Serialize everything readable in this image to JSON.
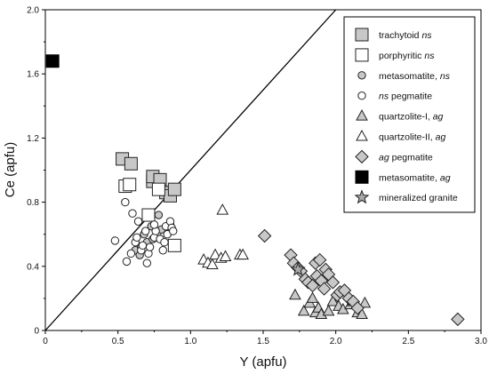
{
  "chart_data": {
    "type": "scatter",
    "xlabel": "Y (apfu)",
    "ylabel": "Ce (apfu)",
    "xlim": [
      0,
      3.0
    ],
    "ylim": [
      0,
      2.0
    ],
    "x_ticks": [
      "0",
      "0.5",
      "1.0",
      "1.5",
      "2.0",
      "2.5",
      "3.0"
    ],
    "y_ticks": [
      "0",
      "0.4",
      "0.8",
      "1.2",
      "1.6",
      "2.0"
    ],
    "legend_placement": "top-right",
    "reference_line": {
      "from": [
        0,
        0
      ],
      "to": [
        2.0,
        2.0
      ]
    },
    "series": [
      {
        "name": "trachytoid ns",
        "name_parts": {
          "text": "trachytoid",
          "italic": "ns"
        },
        "marker": "square-gray",
        "points": [
          [
            0.53,
            1.07
          ],
          [
            0.59,
            1.04
          ],
          [
            0.74,
            0.93
          ],
          [
            0.74,
            0.96
          ],
          [
            0.79,
            0.94
          ],
          [
            0.83,
            0.86
          ],
          [
            0.86,
            0.84
          ],
          [
            0.89,
            0.88
          ]
        ]
      },
      {
        "name": "porphyritic ns",
        "name_parts": {
          "text": "porphyritic",
          "italic": "ns"
        },
        "marker": "square-open",
        "points": [
          [
            0.55,
            0.9
          ],
          [
            0.58,
            0.91
          ],
          [
            0.71,
            0.72
          ],
          [
            0.78,
            0.88
          ],
          [
            0.89,
            0.53
          ]
        ]
      },
      {
        "name": "metasomatite, ns",
        "name_parts": {
          "text": "metasomatite,",
          "italic": "ns"
        },
        "marker": "circle-gray",
        "points": [
          [
            0.62,
            0.5
          ],
          [
            0.66,
            0.52
          ],
          [
            0.7,
            0.55
          ],
          [
            0.74,
            0.57
          ],
          [
            0.77,
            0.6
          ],
          [
            0.8,
            0.63
          ],
          [
            0.84,
            0.6
          ],
          [
            0.86,
            0.66
          ],
          [
            0.73,
            0.65
          ],
          [
            0.68,
            0.6
          ],
          [
            0.78,
            0.72
          ],
          [
            0.65,
            0.47
          ]
        ]
      },
      {
        "name": "ns pegmatite",
        "name_parts": {
          "italic": "ns",
          "text": "pegmatite"
        },
        "marker": "circle-open",
        "points": [
          [
            0.48,
            0.56
          ],
          [
            0.55,
            0.8
          ],
          [
            0.56,
            0.43
          ],
          [
            0.59,
            0.48
          ],
          [
            0.6,
            0.73
          ],
          [
            0.62,
            0.55
          ],
          [
            0.63,
            0.58
          ],
          [
            0.66,
            0.5
          ],
          [
            0.67,
            0.53
          ],
          [
            0.69,
            0.62
          ],
          [
            0.7,
            0.42
          ],
          [
            0.71,
            0.48
          ],
          [
            0.72,
            0.52
          ],
          [
            0.75,
            0.58
          ],
          [
            0.76,
            0.62
          ],
          [
            0.79,
            0.57
          ],
          [
            0.81,
            0.5
          ],
          [
            0.82,
            0.55
          ],
          [
            0.83,
            0.65
          ],
          [
            0.84,
            0.6
          ],
          [
            0.86,
            0.68
          ],
          [
            0.87,
            0.64
          ],
          [
            0.88,
            0.62
          ],
          [
            0.75,
            0.66
          ],
          [
            0.64,
            0.68
          ]
        ]
      },
      {
        "name": "quartzolite-I, ag",
        "name_parts": {
          "text": "quartzolite-I,",
          "italic": "ag"
        },
        "marker": "triangle-gray",
        "points": [
          [
            1.72,
            0.22
          ],
          [
            1.78,
            0.12
          ],
          [
            1.82,
            0.17
          ],
          [
            1.86,
            0.11
          ],
          [
            1.88,
            0.14
          ],
          [
            1.9,
            0.1
          ],
          [
            1.95,
            0.12
          ],
          [
            1.98,
            0.18
          ],
          [
            2.02,
            0.15
          ],
          [
            2.05,
            0.13
          ],
          [
            2.1,
            0.16
          ],
          [
            2.12,
            0.18
          ],
          [
            2.15,
            0.11
          ],
          [
            2.18,
            0.1
          ],
          [
            2.2,
            0.17
          ],
          [
            1.84,
            0.2
          ]
        ]
      },
      {
        "name": "quartzolite-II, ag",
        "name_parts": {
          "text": "quartzolite-II,",
          "italic": "ag"
        },
        "marker": "triangle-open",
        "points": [
          [
            1.09,
            0.44
          ],
          [
            1.12,
            0.42
          ],
          [
            1.15,
            0.41
          ],
          [
            1.17,
            0.47
          ],
          [
            1.21,
            0.45
          ],
          [
            1.22,
            0.75
          ],
          [
            1.24,
            0.46
          ],
          [
            1.34,
            0.47
          ],
          [
            1.36,
            0.47
          ]
        ]
      },
      {
        "name": "ag pegmatite",
        "name_parts": {
          "italic": "ag",
          "text": "pegmatite"
        },
        "marker": "diamond-gray",
        "points": [
          [
            1.51,
            0.59
          ],
          [
            1.69,
            0.47
          ],
          [
            1.71,
            0.42
          ],
          [
            1.74,
            0.39
          ],
          [
            1.76,
            0.37
          ],
          [
            1.79,
            0.32
          ],
          [
            1.81,
            0.3
          ],
          [
            1.84,
            0.28
          ],
          [
            1.86,
            0.42
          ],
          [
            1.87,
            0.34
          ],
          [
            1.89,
            0.44
          ],
          [
            1.9,
            0.31
          ],
          [
            1.92,
            0.26
          ],
          [
            1.93,
            0.38
          ],
          [
            1.95,
            0.35
          ],
          [
            1.98,
            0.3
          ],
          [
            2.01,
            0.22
          ],
          [
            2.03,
            0.24
          ],
          [
            2.06,
            0.25
          ],
          [
            2.09,
            0.2
          ],
          [
            2.12,
            0.18
          ],
          [
            2.15,
            0.14
          ],
          [
            2.84,
            0.07
          ]
        ]
      },
      {
        "name": "metasomatite, ag",
        "name_parts": {
          "text": "metasomatite,",
          "italic": "ag"
        },
        "marker": "square-black",
        "points": [
          [
            0.05,
            1.68
          ]
        ]
      },
      {
        "name": "mineralized granite",
        "name_parts": {
          "text": "mineralized granite"
        },
        "marker": "star-gray",
        "points": [
          [
            1.74,
            0.38
          ]
        ]
      }
    ]
  }
}
